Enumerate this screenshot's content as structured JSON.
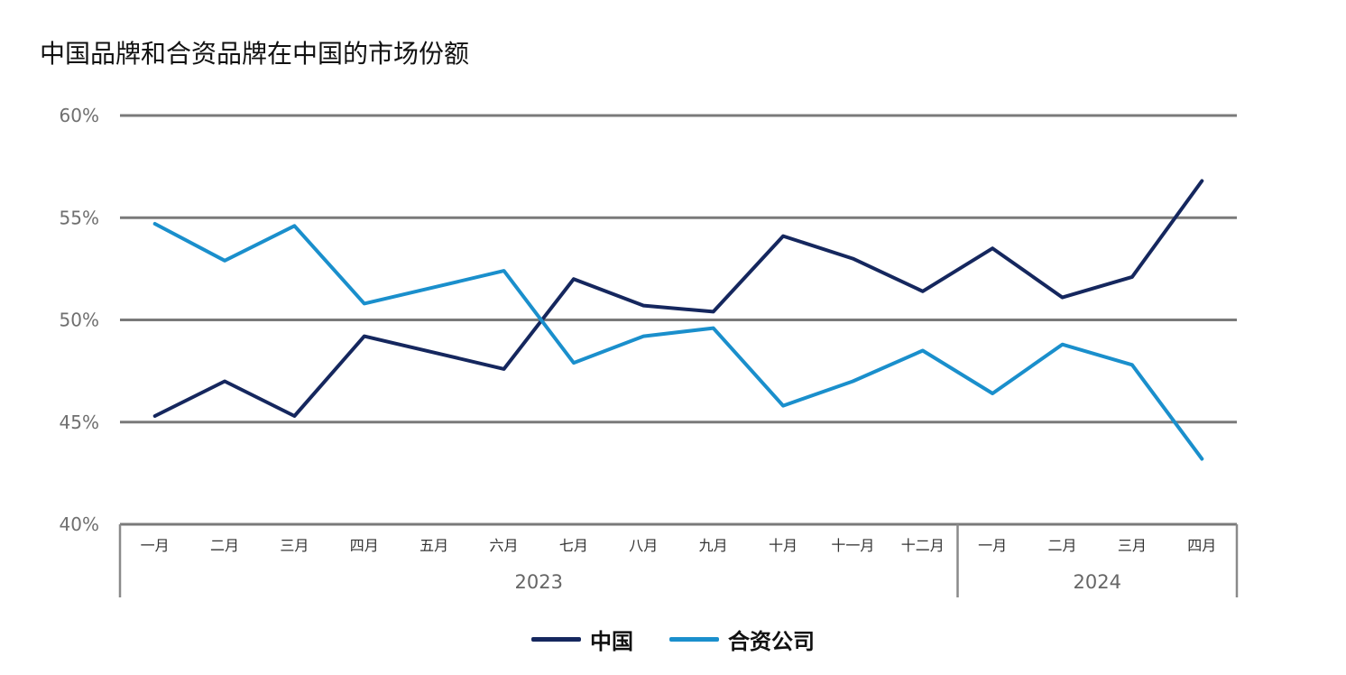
{
  "chart_data": {
    "type": "line",
    "title": "中国品牌和合资品牌在中国的市场份额",
    "xlabel": "",
    "ylabel": "",
    "ylim": [
      40,
      60
    ],
    "yticks": [
      40,
      45,
      50,
      55,
      60
    ],
    "ytick_labels": [
      "40%",
      "45%",
      "50%",
      "55%",
      "60%"
    ],
    "grid": true,
    "categories": [
      "一月",
      "二月",
      "三月",
      "四月",
      "五月",
      "六月",
      "七月",
      "八月",
      "九月",
      "十月",
      "十一月",
      "十二月",
      "一月",
      "二月",
      "三月",
      "四月"
    ],
    "groups": [
      {
        "label": "2023",
        "count": 12
      },
      {
        "label": "2024",
        "count": 4
      }
    ],
    "series": [
      {
        "name": "中国",
        "color": "#15275e",
        "values": [
          45.3,
          47.0,
          45.3,
          49.2,
          48.4,
          47.6,
          52.0,
          50.7,
          50.4,
          54.1,
          53.0,
          51.4,
          53.5,
          51.1,
          52.1,
          56.8
        ]
      },
      {
        "name": "合资公司",
        "color": "#1a8fcc",
        "values": [
          54.7,
          52.9,
          54.6,
          50.8,
          51.6,
          52.4,
          47.9,
          49.2,
          49.6,
          45.8,
          47.0,
          48.5,
          46.4,
          48.8,
          47.8,
          43.2
        ]
      }
    ],
    "legend_position": "bottom-center"
  }
}
